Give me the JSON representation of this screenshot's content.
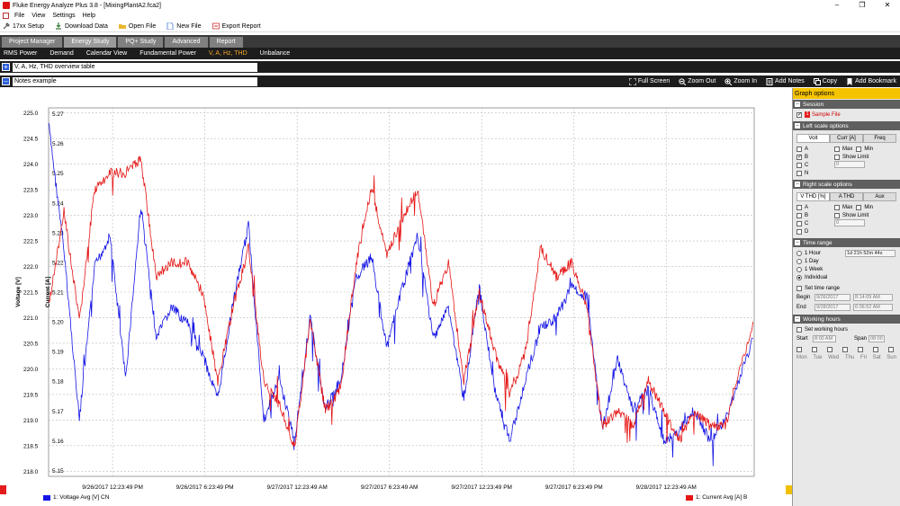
{
  "window": {
    "title": "Fluke Energy Analyze Plus 3.8 - [MixingPlantA2.fca2]",
    "minimize_glyph": "–",
    "maximize_glyph": "❐",
    "close_glyph": "✕"
  },
  "menu": [
    "File",
    "View",
    "Settings",
    "Help"
  ],
  "toolbar": [
    {
      "label": "17xx Setup",
      "icon": "wrench-icon"
    },
    {
      "label": "Download Data",
      "icon": "download-icon"
    },
    {
      "label": "Open File",
      "icon": "folder-icon"
    },
    {
      "label": "New File",
      "icon": "new-file-icon"
    },
    {
      "label": "Export Report",
      "icon": "export-icon"
    }
  ],
  "main_tabs": [
    "Project Manager",
    "Energy Study",
    "PQ+ Study",
    "Advanced",
    "Report"
  ],
  "main_tab_active": "Energy Study",
  "sub_tabs": [
    "RMS Power",
    "Demand",
    "Calendar View",
    "Fundamental Power",
    "V, A, Hz, THD",
    "Unbalance"
  ],
  "sub_tab_active": "V, A, Hz, THD",
  "sections": {
    "overview": {
      "expander": "+",
      "label": "V, A, Hz, THD overview table"
    },
    "notes": {
      "expander": "–",
      "label": "Notes example"
    }
  },
  "graph_tools": [
    {
      "label": "Full Screen",
      "icon": "fullscreen-icon"
    },
    {
      "label": "Zoom Out",
      "icon": "zoom-out-icon"
    },
    {
      "label": "Zoom In",
      "icon": "zoom-in-icon"
    },
    {
      "label": "Add Notes",
      "icon": "notes-icon"
    },
    {
      "label": "Copy",
      "icon": "copy-icon"
    },
    {
      "label": "Add Bookmark",
      "icon": "bookmark-icon"
    }
  ],
  "right_panel": {
    "header": "Graph options",
    "session": {
      "title": "Session",
      "badge": "1",
      "file": "Sample File",
      "checked": true
    },
    "left_scale": {
      "title": "Left scale options",
      "tabs": [
        "Volt",
        "Curr [A]",
        "Freq"
      ],
      "active_tab": "Volt",
      "phases": [
        {
          "label": "A",
          "checked": false
        },
        {
          "label": "B",
          "checked": true
        },
        {
          "label": "C",
          "checked": false
        },
        {
          "label": "N",
          "checked": false
        }
      ],
      "opts": [
        "Max",
        "Min",
        "Show Limit"
      ],
      "value": "0"
    },
    "right_scale": {
      "title": "Right scale options",
      "tabs": [
        "V THD [%]",
        "A THD",
        "Aux"
      ],
      "active_tab": "V THD [%]",
      "phases": [
        {
          "label": "A",
          "checked": false
        },
        {
          "label": "B",
          "checked": false
        },
        {
          "label": "C",
          "checked": false
        },
        {
          "label": "D",
          "checked": false
        }
      ],
      "opts": [
        "Max",
        "Min",
        "Show Limit"
      ],
      "value": "0"
    },
    "time_range": {
      "title": "Time range",
      "options": [
        "1 Hour",
        "1 Day",
        "1 Week",
        "Individual"
      ],
      "selected": "Individual",
      "duration": "1d 21h 52m 44s",
      "set_time_range": "Set time range",
      "begin_label": "Begin",
      "begin_date": "9/26/2017",
      "begin_time": "8:14:09 AM",
      "end_label": "End",
      "end_date": "9/28/2017",
      "end_time": "6:06:52 AM"
    },
    "working_hours": {
      "title": "Working hours",
      "set_label": "Set working hours",
      "start_label": "Start",
      "start": "8:00 AM",
      "span_label": "Span",
      "span": "08:00",
      "days": [
        "Mon",
        "Tue",
        "Wed",
        "Thu",
        "Fri",
        "Sat",
        "Sun"
      ]
    }
  },
  "chart_data": {
    "type": "line",
    "title": "",
    "xlabel": "",
    "ylabel_left_outer": "Voltage [V]",
    "ylabel_left_inner": "Current [A]",
    "voltage_ticks": [
      "225.0",
      "224.5",
      "224.0",
      "223.5",
      "223.0",
      "222.5",
      "222.0",
      "221.5",
      "221.0",
      "220.5",
      "220.0",
      "219.5",
      "219.0",
      "218.5",
      "218.0"
    ],
    "current_ticks": [
      "5.27",
      "5.26",
      "5.25",
      "5.24",
      "5.23",
      "5.22",
      "5.21",
      "5.20",
      "5.19",
      "5.18",
      "5.17",
      "5.16",
      "5.15"
    ],
    "x_ticks": [
      "9/26/2017 12:23:49 PM",
      "9/26/2017 6:23:49 PM",
      "9/27/2017 12:23:49 AM",
      "9/27/2017 6:23:49 AM",
      "9/27/2017 12:23:49 PM",
      "9/27/2017 6:23:49 PM",
      "9/28/2017 12:23:49 AM"
    ],
    "x_range_hours_from_start": [
      0,
      45.88
    ],
    "x_tick_hours_from_start": [
      4.16,
      10.16,
      16.16,
      22.16,
      28.16,
      34.16,
      40.16
    ],
    "grid": true,
    "series": [
      {
        "name": "1: Voltage Avg [V] CN",
        "axis": "left",
        "color": "#1414e6",
        "hours": [
          0,
          1,
          2,
          3,
          4,
          5,
          6,
          7,
          8,
          9,
          10,
          11,
          12,
          13,
          14,
          15,
          16,
          17,
          18,
          19,
          20,
          21,
          22,
          23,
          24,
          25,
          26,
          27,
          28,
          29,
          30,
          31,
          32,
          33,
          34,
          35,
          36,
          37,
          38,
          39,
          40,
          41,
          42,
          43,
          44,
          45.8
        ],
        "values": [
          224.8,
          222.3,
          219.0,
          222.0,
          222.6,
          219.8,
          223.2,
          220.6,
          221.2,
          220.9,
          220.3,
          219.4,
          221.3,
          222.8,
          219.0,
          219.8,
          218.6,
          221.0,
          219.2,
          219.8,
          221.8,
          222.2,
          220.4,
          221.6,
          222.6,
          220.6,
          221.2,
          219.4,
          221.6,
          219.6,
          218.6,
          219.8,
          220.8,
          221.0,
          221.6,
          221.4,
          218.8,
          220.2,
          219.2,
          219.6,
          218.6,
          218.8,
          219.2,
          218.6,
          219.0,
          220.6
        ]
      },
      {
        "name": "1: Current Avg [A] B",
        "axis": "left-inner",
        "color": "#e61414",
        "hours": [
          0,
          1,
          2,
          3,
          4,
          5,
          6,
          7,
          8,
          9,
          10,
          11,
          12,
          13,
          14,
          15,
          16,
          17,
          18,
          19,
          20,
          21,
          22,
          23,
          24,
          25,
          26,
          27,
          28,
          29,
          30,
          31,
          32,
          33,
          34,
          35,
          36,
          37,
          38,
          39,
          40,
          41,
          42,
          43,
          44,
          45.8
        ],
        "values": [
          5.205,
          5.237,
          5.2,
          5.245,
          5.25,
          5.25,
          5.255,
          5.215,
          5.22,
          5.22,
          5.21,
          5.18,
          5.205,
          5.225,
          5.18,
          5.172,
          5.158,
          5.2,
          5.17,
          5.178,
          5.22,
          5.245,
          5.222,
          5.235,
          5.245,
          5.205,
          5.22,
          5.18,
          5.21,
          5.19,
          5.175,
          5.19,
          5.225,
          5.215,
          5.22,
          5.205,
          5.165,
          5.17,
          5.165,
          5.18,
          5.17,
          5.16,
          5.17,
          5.165,
          5.165,
          5.2
        ]
      }
    ]
  }
}
